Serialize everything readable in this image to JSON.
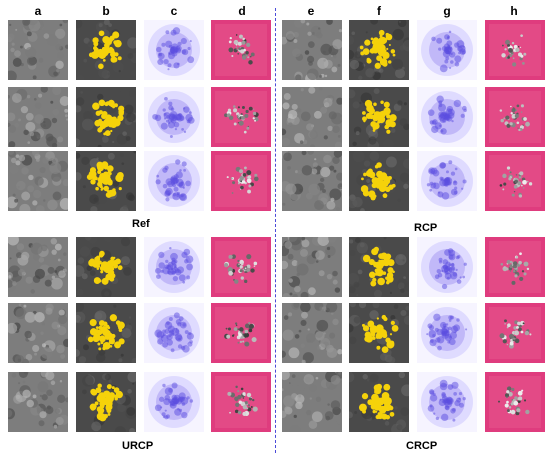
{
  "columns_left": [
    "a",
    "b",
    "c",
    "d"
  ],
  "columns_right": [
    "e",
    "f",
    "g",
    "h"
  ],
  "groups": {
    "top_left": "Ref",
    "top_right": "RCP",
    "bottom_left": "URCP",
    "bottom_right": "CRCP"
  },
  "colors": {
    "sem_gray": "#7d7d7d",
    "binary_dark": "#4a4a4a",
    "pore_yellow": "#f5d20a",
    "density_purple": "#5b4de0",
    "overlay_pink": "#df3c7e",
    "divider_blue": "#4b4bd9"
  }
}
